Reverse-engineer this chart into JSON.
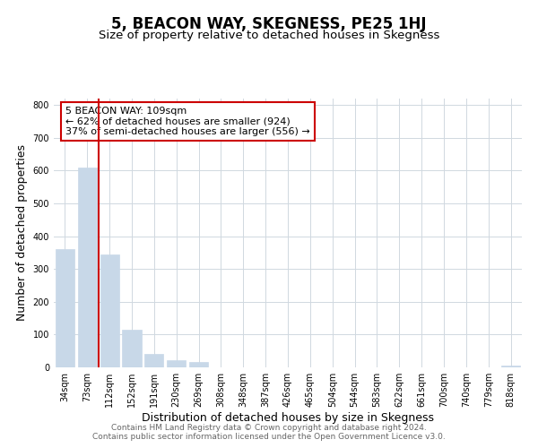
{
  "title": "5, BEACON WAY, SKEGNESS, PE25 1HJ",
  "subtitle": "Size of property relative to detached houses in Skegness",
  "xlabel": "Distribution of detached houses by size in Skegness",
  "ylabel": "Number of detached properties",
  "bar_labels": [
    "34sqm",
    "73sqm",
    "112sqm",
    "152sqm",
    "191sqm",
    "230sqm",
    "269sqm",
    "308sqm",
    "348sqm",
    "387sqm",
    "426sqm",
    "465sqm",
    "504sqm",
    "544sqm",
    "583sqm",
    "622sqm",
    "661sqm",
    "700sqm",
    "740sqm",
    "779sqm",
    "818sqm"
  ],
  "bar_values": [
    360,
    610,
    345,
    115,
    40,
    22,
    17,
    0,
    0,
    0,
    0,
    0,
    0,
    0,
    0,
    0,
    0,
    0,
    0,
    0,
    5
  ],
  "bar_color": "#c8d8e8",
  "vline_index": 1.5,
  "vline_color": "#cc0000",
  "ylim": [
    0,
    820
  ],
  "yticks": [
    0,
    100,
    200,
    300,
    400,
    500,
    600,
    700,
    800
  ],
  "annotation_title": "5 BEACON WAY: 109sqm",
  "annotation_line1": "← 62% of detached houses are smaller (924)",
  "annotation_line2": "37% of semi-detached houses are larger (556) →",
  "annotation_box_color": "#ffffff",
  "annotation_box_edge": "#cc0000",
  "footer1": "Contains HM Land Registry data © Crown copyright and database right 2024.",
  "footer2": "Contains public sector information licensed under the Open Government Licence v3.0.",
  "background_color": "#ffffff",
  "grid_color": "#d0d8e0",
  "title_fontsize": 12,
  "subtitle_fontsize": 9.5,
  "axis_label_fontsize": 9,
  "tick_fontsize": 7,
  "annotation_fontsize": 8,
  "footer_fontsize": 6.5
}
